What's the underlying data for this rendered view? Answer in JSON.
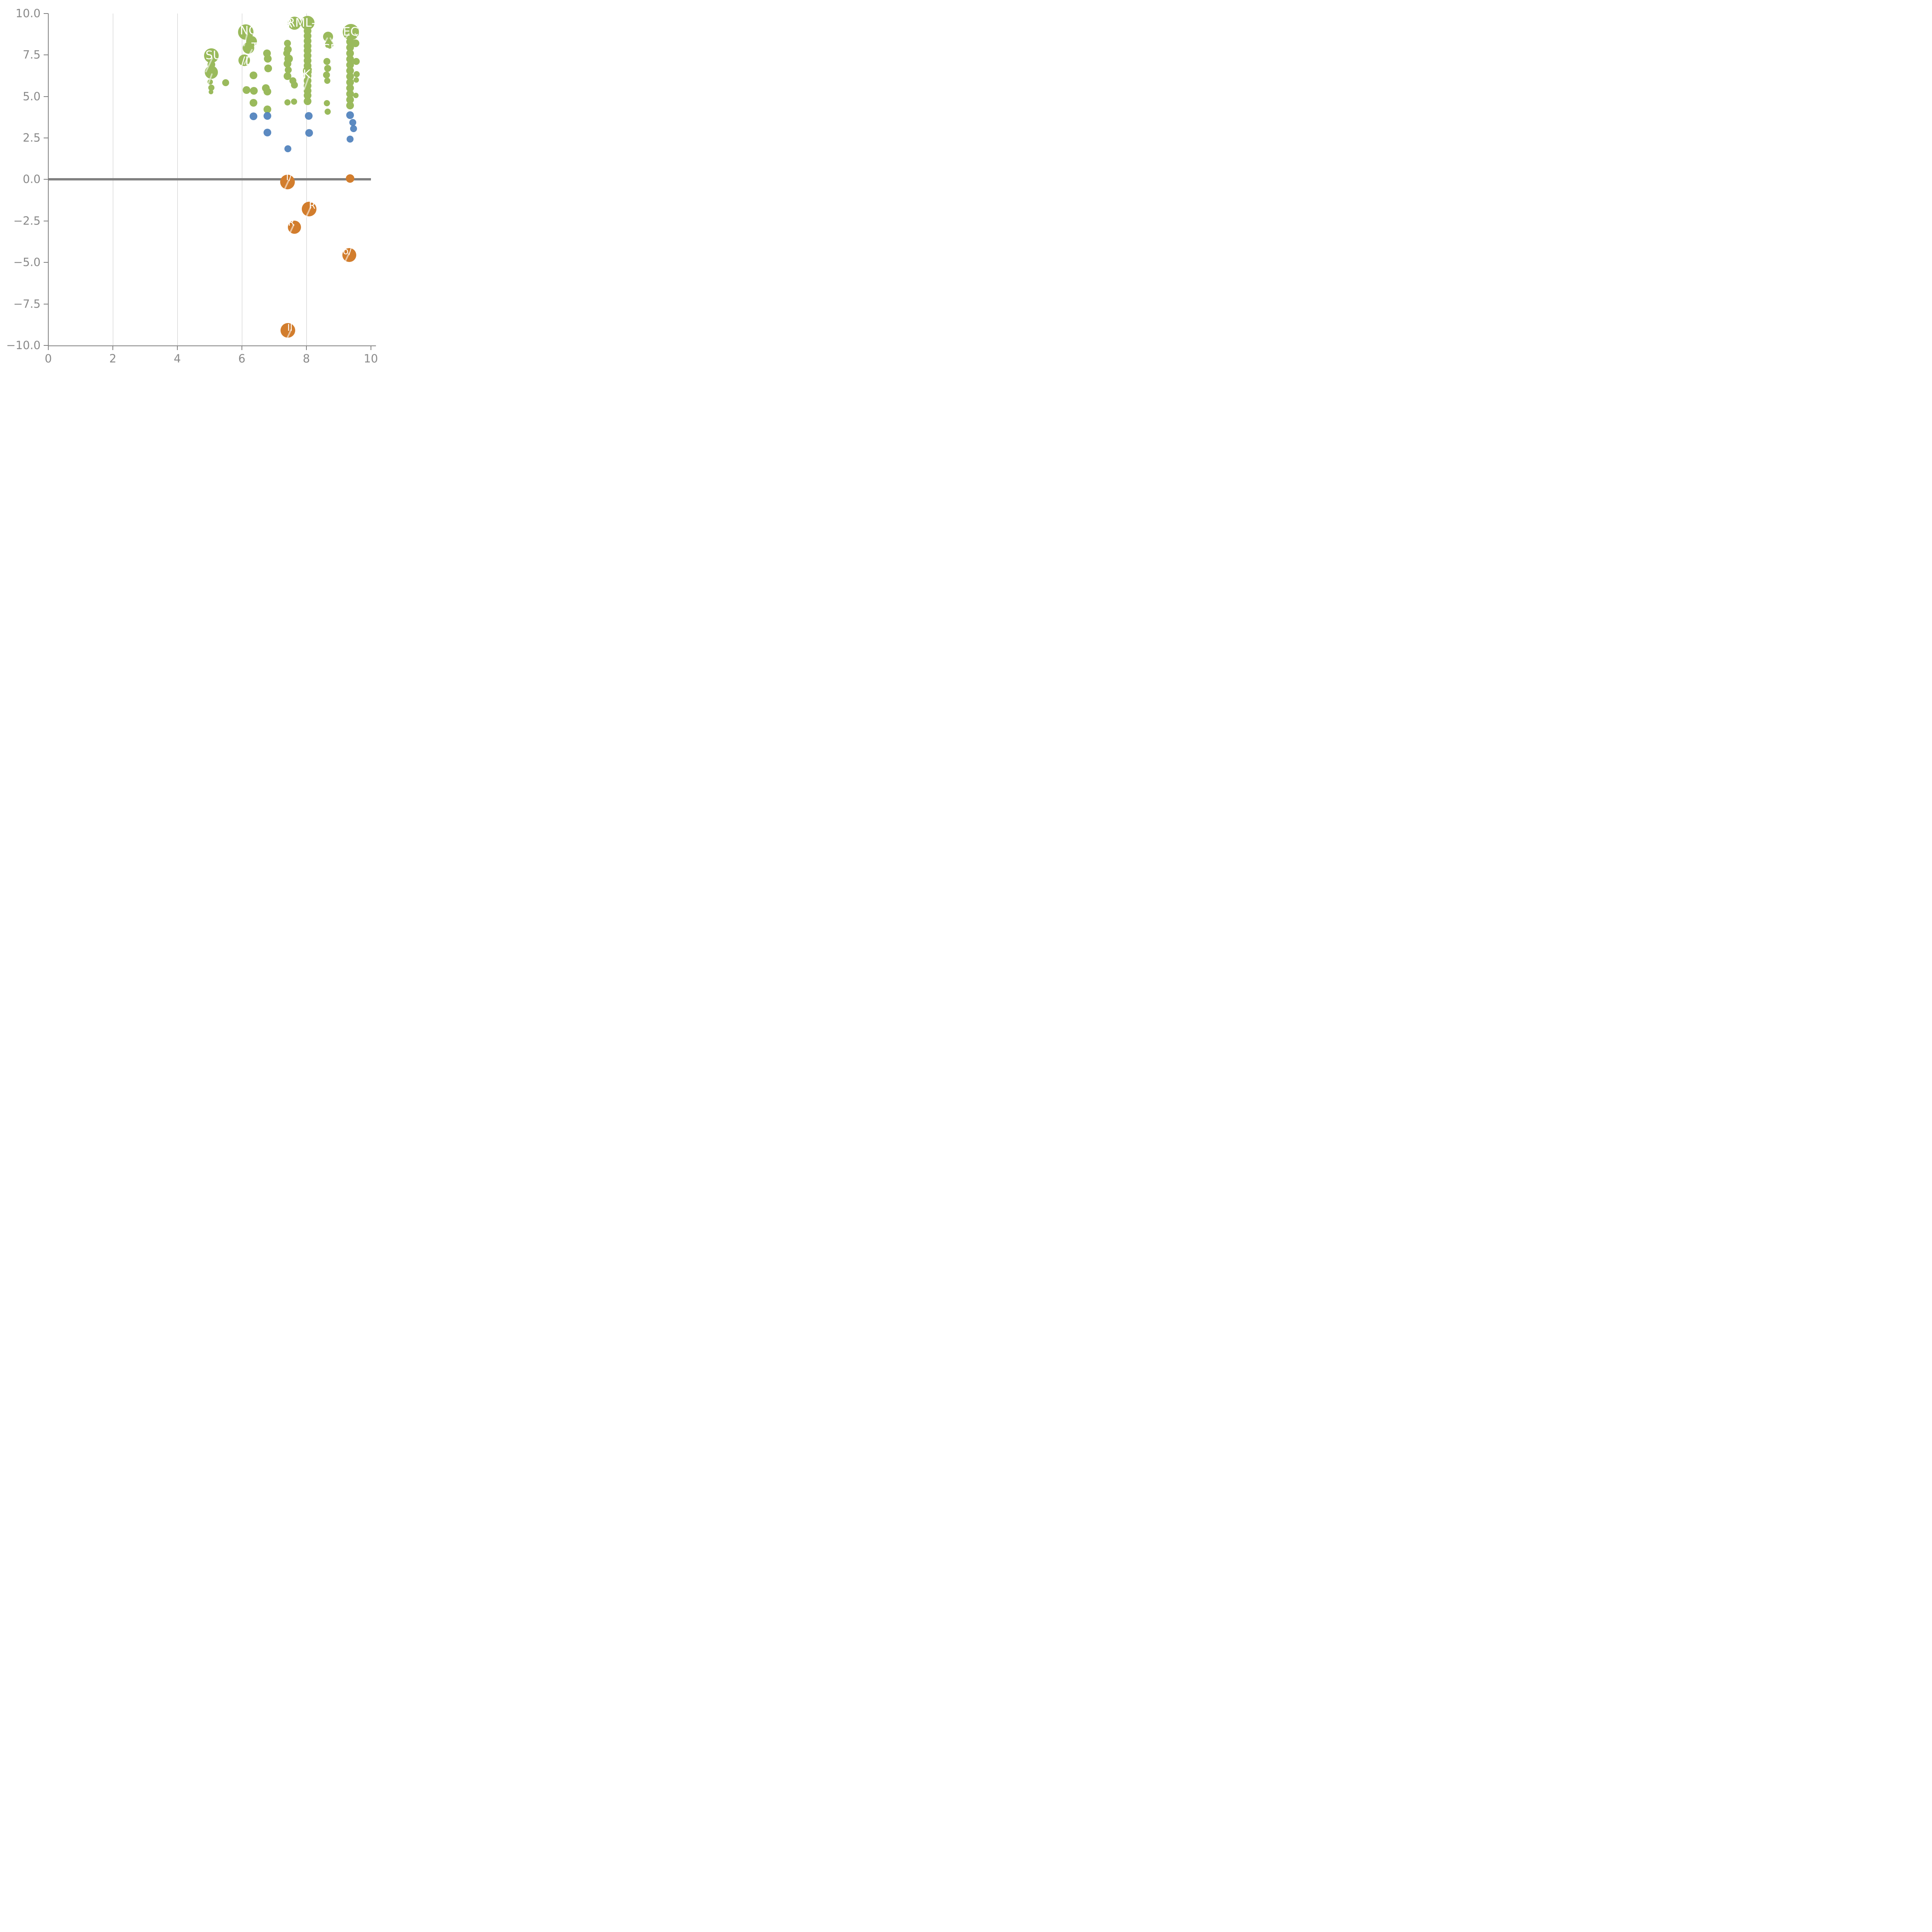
{
  "chart_data": {
    "type": "scatter",
    "title": "",
    "subtitle": "",
    "xlabel": "",
    "ylabel": "",
    "xlim": [
      0,
      10
    ],
    "ylim": [
      -10,
      10
    ],
    "grid": "vertical-only",
    "legend": "none",
    "x_tick_values": [
      0,
      2,
      4,
      6,
      8,
      10
    ],
    "x_tick_labels": [
      "0",
      "2",
      "4",
      "6",
      "8",
      "10"
    ],
    "y_tick_values": [
      10.0,
      7.5,
      5.0,
      2.5,
      0.0,
      -2.5,
      -5.0,
      -7.5,
      -10.0
    ],
    "y_tick_labels": [
      "10.0",
      "7.5",
      "5.0",
      "2.5",
      "0.0",
      "−2.5",
      "−5.0",
      "−7.5",
      "−10.0"
    ],
    "gridline_x_values": [
      2,
      4,
      6,
      8
    ],
    "zero_line_y": 0,
    "colors": {
      "green": "#9aba5c",
      "blue": "#4e80bc",
      "orange": "#d27d2d",
      "axis": "#808080",
      "tick_text": "#8a8a8a",
      "grid": "#9a9a9a",
      "label_text": "#ffffff"
    },
    "series": [
      {
        "name": "green-bubbles",
        "color_key": "green",
        "points": [
          {
            "x": 5.05,
            "y": 7.45,
            "r": 19
          },
          {
            "x": 5.05,
            "y": 6.93,
            "r": 10
          },
          {
            "x": 5.05,
            "y": 6.45,
            "r": 17
          },
          {
            "x": 5.02,
            "y": 5.87,
            "r": 7
          },
          {
            "x": 5.06,
            "y": 5.52,
            "r": 8
          },
          {
            "x": 5.04,
            "y": 5.27,
            "r": 6
          },
          {
            "x": 5.5,
            "y": 5.83,
            "r": 9
          },
          {
            "x": 6.12,
            "y": 8.88,
            "r": 20
          },
          {
            "x": 6.3,
            "y": 8.33,
            "r": 14
          },
          {
            "x": 6.21,
            "y": 7.93,
            "r": 15
          },
          {
            "x": 6.07,
            "y": 7.17,
            "r": 15
          },
          {
            "x": 6.36,
            "y": 6.26,
            "r": 10
          },
          {
            "x": 6.14,
            "y": 5.38,
            "r": 10
          },
          {
            "x": 6.37,
            "y": 5.35,
            "r": 10
          },
          {
            "x": 6.36,
            "y": 4.62,
            "r": 10
          },
          {
            "x": 6.78,
            "y": 7.6,
            "r": 10
          },
          {
            "x": 6.8,
            "y": 7.28,
            "r": 10
          },
          {
            "x": 6.82,
            "y": 6.68,
            "r": 10
          },
          {
            "x": 6.74,
            "y": 5.5,
            "r": 10
          },
          {
            "x": 6.79,
            "y": 5.29,
            "r": 10
          },
          {
            "x": 6.79,
            "y": 4.23,
            "r": 10
          },
          {
            "x": 7.41,
            "y": 8.2,
            "r": 9
          },
          {
            "x": 7.43,
            "y": 7.82,
            "r": 10
          },
          {
            "x": 7.39,
            "y": 7.6,
            "r": 9
          },
          {
            "x": 7.45,
            "y": 7.28,
            "r": 11
          },
          {
            "x": 7.41,
            "y": 6.98,
            "r": 10
          },
          {
            "x": 7.44,
            "y": 6.6,
            "r": 9
          },
          {
            "x": 7.42,
            "y": 6.22,
            "r": 10
          },
          {
            "x": 7.58,
            "y": 5.95,
            "r": 9
          },
          {
            "x": 7.63,
            "y": 5.68,
            "r": 9
          },
          {
            "x": 7.41,
            "y": 4.64,
            "r": 8
          },
          {
            "x": 7.62,
            "y": 4.69,
            "r": 8
          },
          {
            "x": 7.63,
            "y": 9.42,
            "r": 17
          },
          {
            "x": 8.04,
            "y": 9.43,
            "r": 18
          },
          {
            "x": 8.04,
            "y": 8.95,
            "r": 10
          },
          {
            "x": 8.04,
            "y": 8.65,
            "r": 10
          },
          {
            "x": 8.04,
            "y": 8.35,
            "r": 10
          },
          {
            "x": 8.04,
            "y": 8.05,
            "r": 10
          },
          {
            "x": 8.04,
            "y": 7.75,
            "r": 10
          },
          {
            "x": 8.04,
            "y": 7.45,
            "r": 10
          },
          {
            "x": 8.04,
            "y": 7.15,
            "r": 10
          },
          {
            "x": 8.04,
            "y": 6.85,
            "r": 10
          },
          {
            "x": 8.04,
            "y": 6.55,
            "r": 12
          },
          {
            "x": 8.04,
            "y": 6.25,
            "r": 10
          },
          {
            "x": 8.04,
            "y": 5.95,
            "r": 10
          },
          {
            "x": 8.04,
            "y": 5.65,
            "r": 10
          },
          {
            "x": 8.04,
            "y": 5.35,
            "r": 10
          },
          {
            "x": 8.04,
            "y": 5.05,
            "r": 10
          },
          {
            "x": 8.04,
            "y": 4.7,
            "r": 10
          },
          {
            "x": 8.67,
            "y": 8.6,
            "r": 13
          },
          {
            "x": 8.71,
            "y": 8.13,
            "r": 11
          },
          {
            "x": 8.64,
            "y": 7.1,
            "r": 9
          },
          {
            "x": 8.66,
            "y": 6.7,
            "r": 9
          },
          {
            "x": 8.63,
            "y": 6.3,
            "r": 9
          },
          {
            "x": 8.65,
            "y": 5.95,
            "r": 8
          },
          {
            "x": 8.64,
            "y": 4.6,
            "r": 8
          },
          {
            "x": 8.66,
            "y": 4.08,
            "r": 8
          },
          {
            "x": 9.38,
            "y": 8.88,
            "r": 21
          },
          {
            "x": 9.52,
            "y": 8.2,
            "r": 10
          },
          {
            "x": 9.35,
            "y": 8.3,
            "r": 10
          },
          {
            "x": 9.35,
            "y": 7.95,
            "r": 10
          },
          {
            "x": 9.35,
            "y": 7.6,
            "r": 10
          },
          {
            "x": 9.35,
            "y": 7.25,
            "r": 10
          },
          {
            "x": 9.35,
            "y": 6.9,
            "r": 10
          },
          {
            "x": 9.35,
            "y": 6.55,
            "r": 10
          },
          {
            "x": 9.35,
            "y": 6.2,
            "r": 10
          },
          {
            "x": 9.35,
            "y": 5.85,
            "r": 10
          },
          {
            "x": 9.35,
            "y": 5.5,
            "r": 10
          },
          {
            "x": 9.35,
            "y": 5.15,
            "r": 10
          },
          {
            "x": 9.35,
            "y": 4.8,
            "r": 10
          },
          {
            "x": 9.35,
            "y": 4.45,
            "r": 10
          },
          {
            "x": 9.55,
            "y": 7.1,
            "r": 9
          },
          {
            "x": 9.56,
            "y": 6.35,
            "r": 8
          },
          {
            "x": 9.55,
            "y": 6.0,
            "r": 7
          },
          {
            "x": 9.54,
            "y": 5.05,
            "r": 7
          }
        ]
      },
      {
        "name": "blue-bubbles",
        "color_key": "blue",
        "points": [
          {
            "x": 6.36,
            "y": 3.8,
            "r": 10
          },
          {
            "x": 6.79,
            "y": 3.82,
            "r": 10
          },
          {
            "x": 6.79,
            "y": 2.83,
            "r": 10
          },
          {
            "x": 7.43,
            "y": 1.85,
            "r": 9
          },
          {
            "x": 8.07,
            "y": 3.83,
            "r": 10
          },
          {
            "x": 8.08,
            "y": 2.81,
            "r": 10
          },
          {
            "x": 9.35,
            "y": 3.87,
            "r": 10
          },
          {
            "x": 9.44,
            "y": 3.43,
            "r": 9
          },
          {
            "x": 9.46,
            "y": 3.06,
            "r": 9
          },
          {
            "x": 9.36,
            "y": 2.43,
            "r": 9
          }
        ]
      },
      {
        "name": "orange-bubbles",
        "color_key": "orange",
        "points": [
          {
            "x": 7.42,
            "y": -0.15,
            "r": 19
          },
          {
            "x": 9.36,
            "y": 0.05,
            "r": 11
          },
          {
            "x": 8.08,
            "y": -1.78,
            "r": 19
          },
          {
            "x": 7.63,
            "y": -2.87,
            "r": 17
          },
          {
            "x": 9.33,
            "y": -4.55,
            "r": 18
          },
          {
            "x": 7.43,
            "y": -9.1,
            "r": 19
          }
        ]
      }
    ],
    "annotations": [
      {
        "text": "R",
        "x": 7.45,
        "y": 9.36,
        "size": 30
      },
      {
        "text": "RML-N",
        "x": 7.98,
        "y": 9.42,
        "size": 30
      },
      {
        "text": "TECH",
        "x": 9.4,
        "y": 8.88,
        "size": 30
      },
      {
        "text": "NC",
        "x": 6.2,
        "y": 8.94,
        "size": 30
      },
      {
        "text": "SU",
        "x": 5.12,
        "y": 7.46,
        "size": 30
      },
      {
        "text": "TI",
        "x": 6.46,
        "y": 7.95,
        "size": 30
      },
      {
        "text": "/D",
        "x": 6.18,
        "y": 7.12,
        "size": 30
      },
      {
        "text": "KD",
        "x": 8.15,
        "y": 6.32,
        "size": 30
      },
      {
        "text": "SF",
        "x": 8.73,
        "y": 7.85,
        "size": 30
      },
      {
        "text": "I/",
        "x": 7.46,
        "y": 0.15,
        "size": 24
      },
      {
        "text": "R",
        "x": 8.18,
        "y": -1.58,
        "size": 24
      },
      {
        "text": "R",
        "x": 7.53,
        "y": -2.6,
        "size": 24
      },
      {
        "text": "o/",
        "x": 9.27,
        "y": -4.32,
        "size": 24
      },
      {
        "text": "Il",
        "x": 7.49,
        "y": -8.92,
        "size": 24
      }
    ],
    "leader_lines": [
      {
        "x": 5.07,
        "y": 7.34,
        "angle": 25,
        "len": 42
      },
      {
        "x": 5.06,
        "y": 6.38,
        "angle": 20,
        "len": 40
      },
      {
        "x": 6.15,
        "y": 8.78,
        "angle": 15,
        "len": 34
      },
      {
        "x": 6.3,
        "y": 7.86,
        "angle": 28,
        "len": 46
      },
      {
        "x": 8.06,
        "y": 6.24,
        "angle": 20,
        "len": 40
      },
      {
        "x": 9.31,
        "y": 8.8,
        "angle": 38,
        "len": 56
      },
      {
        "x": 9.47,
        "y": 8.8,
        "angle": -38,
        "len": 56
      },
      {
        "x": 8.64,
        "y": 8.56,
        "angle": 30,
        "len": 38
      },
      {
        "x": 8.71,
        "y": 8.56,
        "angle": -30,
        "len": 38
      },
      {
        "x": 7.44,
        "y": -0.02,
        "angle": 25,
        "len": 40
      },
      {
        "x": 8.12,
        "y": -1.62,
        "angle": 25,
        "len": 34
      },
      {
        "x": 7.6,
        "y": -2.7,
        "angle": 25,
        "len": 36
      },
      {
        "x": 9.31,
        "y": -4.42,
        "angle": 25,
        "len": 40
      },
      {
        "x": 7.51,
        "y": -9.02,
        "angle": 25,
        "len": 40
      }
    ]
  }
}
